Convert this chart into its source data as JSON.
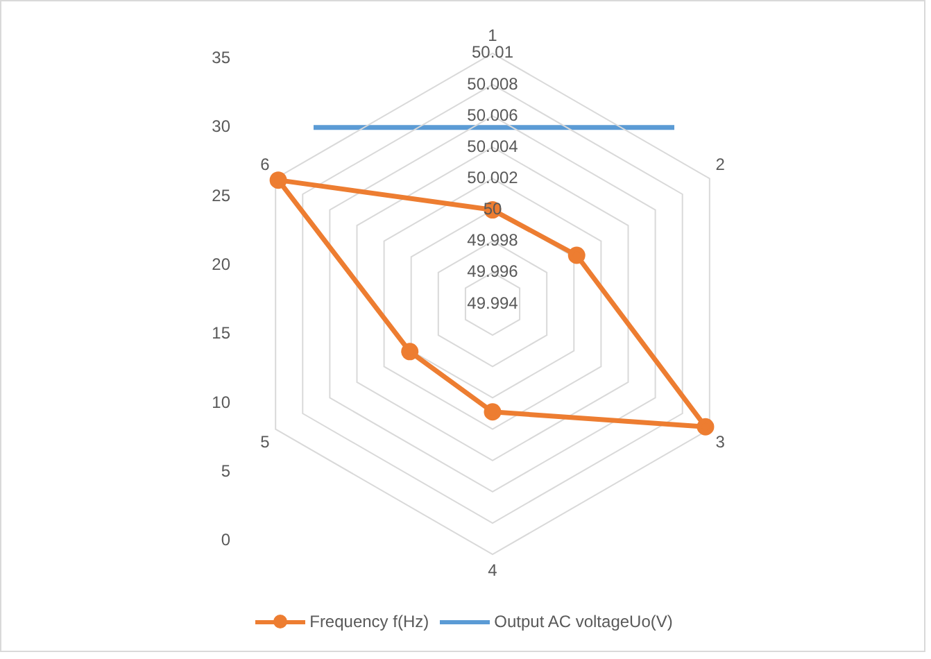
{
  "chart_data": [
    {
      "type": "radar",
      "categories": [
        "1",
        "2",
        "3",
        "4",
        "5",
        "6"
      ],
      "series": [
        {
          "name": "Frequency f(Hz)",
          "color": "#ed7d31",
          "values": [
            50.0,
            50.0002,
            50.0097,
            50.0009,
            50.0001,
            50.0098
          ]
        }
      ],
      "ylim": [
        49.994,
        50.01
      ],
      "yticks": [
        49.994,
        49.996,
        49.998,
        50,
        50.002,
        50.004,
        50.006,
        50.008,
        50.01
      ],
      "grid": true,
      "legend": "bottom",
      "marker": "circle",
      "line_style": "solid"
    },
    {
      "type": "line",
      "categories": [
        null,
        null,
        null,
        null,
        null,
        null
      ],
      "series": [
        {
          "name": "Output AC voltageUo(V)",
          "color": "#5b9bd5",
          "values": [
            30,
            30,
            30,
            30,
            30,
            30
          ]
        }
      ],
      "ylim": [
        0,
        35
      ],
      "yticks": [
        0,
        5,
        10,
        15,
        20,
        25,
        30,
        35
      ],
      "grid": false,
      "legend": "bottom",
      "marker": "none",
      "line_style": "solid"
    }
  ]
}
